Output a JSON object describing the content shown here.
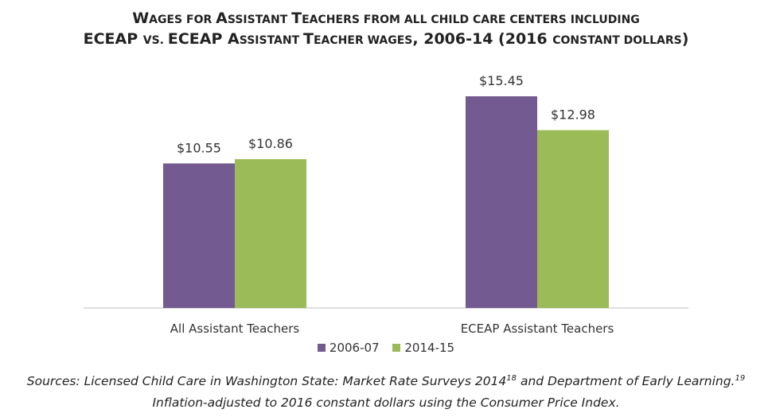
{
  "title": {
    "line1": [
      {
        "text": "W",
        "big": true
      },
      {
        "text": "AGES FOR ",
        "big": false
      },
      {
        "text": "A",
        "big": true
      },
      {
        "text": "SSISTANT ",
        "big": false
      },
      {
        "text": "T",
        "big": true
      },
      {
        "text": "EACHERS FROM ALL CHILD CARE CENTERS INCLUDING",
        "big": false
      }
    ],
    "line2": [
      {
        "text": "ECEAP ",
        "big": true
      },
      {
        "text": "VS. ",
        "big": false
      },
      {
        "text": "ECEAP A",
        "big": true
      },
      {
        "text": "SSISTANT ",
        "big": false
      },
      {
        "text": "T",
        "big": true
      },
      {
        "text": "EACHER WAGES",
        "big": false
      },
      {
        "text": ", 2006-14 (2016 ",
        "big": true
      },
      {
        "text": "CONSTANT DOLLARS",
        "big": false
      },
      {
        "text": ")",
        "big": true
      }
    ]
  },
  "chart_data": {
    "type": "bar",
    "categories": [
      "All Assistant Teachers",
      "ECEAP Assistant Teachers"
    ],
    "series": [
      {
        "name": "2006-07",
        "color": "#735a91",
        "values": [
          10.55,
          15.45
        ],
        "labels": [
          "$10.55",
          "$15.45"
        ]
      },
      {
        "name": "2014-15",
        "color": "#9bbb59",
        "values": [
          10.86,
          12.98
        ],
        "labels": [
          "$10.86",
          "$12.98"
        ]
      }
    ],
    "ylim": [
      0,
      16
    ],
    "grid": false,
    "legend": "bottom"
  },
  "source": {
    "line1_pre": "Sources: Licensed Child Care in Washington State: Market Rate Surveys 2014",
    "sup1": "18",
    "line1_mid": " and Department of Early Learning.",
    "sup2": "19",
    "line2": "Inflation-adjusted to 2016 constant dollars using the Consumer Price Index."
  }
}
